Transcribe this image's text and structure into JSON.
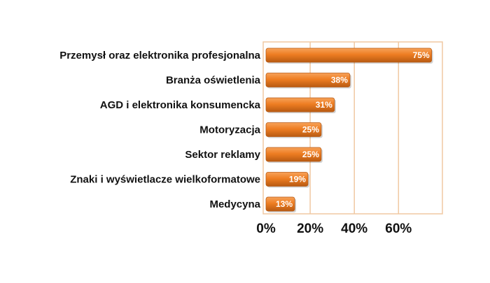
{
  "colors": {
    "bar_fill": "#ee7d22",
    "bar_fill_dark": "#b85a12",
    "bar_highlight": "#f7a25a",
    "plot_border": "#f0c8a2",
    "gridline": "#f0c8a2",
    "text": "#111111",
    "value_text": "#ffffff"
  },
  "chart_data": {
    "type": "bar",
    "orientation": "horizontal",
    "categories": [
      "Przemysł oraz elektronika profesjonalna",
      "Branża oświetlenia",
      "AGD i elektronika konsumencka",
      "Motoryzacja",
      "Sektor reklamy",
      "Znaki i wyświetlacze wielkoformatowe",
      "Medycyna"
    ],
    "values": [
      75,
      38,
      31,
      25,
      25,
      19,
      13
    ],
    "value_labels": [
      "75%",
      "38%",
      "31%",
      "25%",
      "25%",
      "19%",
      "13%"
    ],
    "x_ticks": [
      0,
      20,
      40,
      60
    ],
    "x_tick_labels": [
      "0%",
      "20%",
      "40%",
      "60%"
    ],
    "xlim": [
      0,
      80
    ],
    "grid": "vertical",
    "legend": "none"
  }
}
